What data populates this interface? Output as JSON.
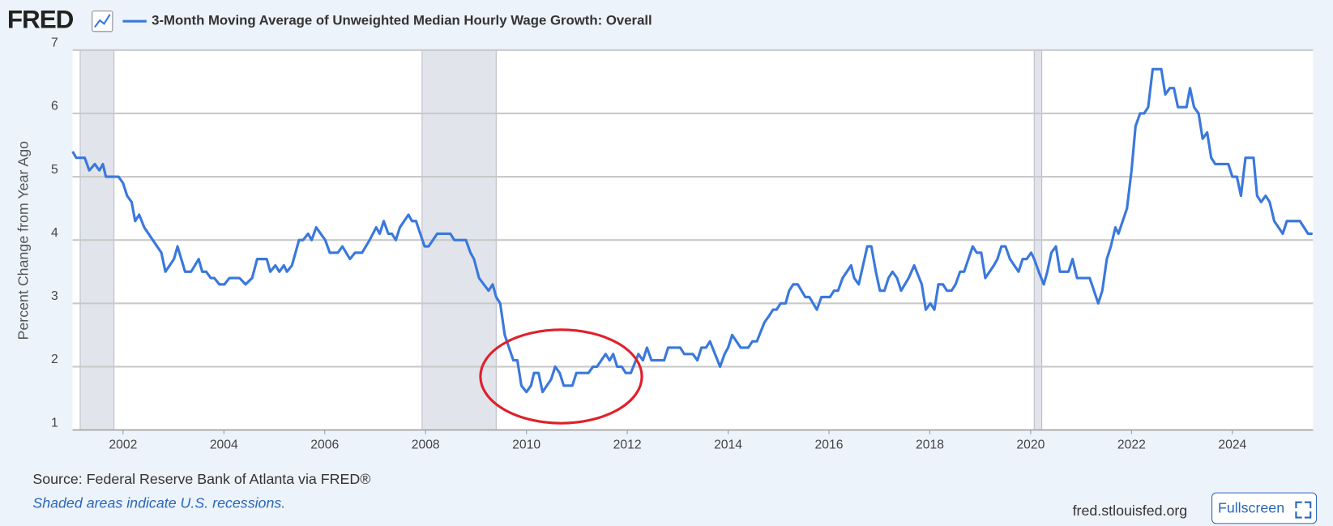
{
  "header": {
    "logo": "FRED"
  },
  "footer": {
    "source": "Source: Federal Reserve Bank of Atlanta via FRED®",
    "note": "Shaded areas indicate U.S. recessions.",
    "site": "fred.stlouisfed.org",
    "button": "Fullscreen"
  },
  "chart_data": {
    "type": "line",
    "ylabel": "Percent Change from Year Ago",
    "xlim": [
      2001.0,
      2025.6
    ],
    "ylim": [
      1,
      7
    ],
    "xticks": [
      2002,
      2004,
      2006,
      2008,
      2010,
      2012,
      2014,
      2016,
      2018,
      2020,
      2022,
      2024
    ],
    "yticks": [
      1,
      2,
      3,
      4,
      5,
      6,
      7
    ],
    "grid": true,
    "recessions": [
      [
        2001.15,
        2001.82
      ],
      [
        2007.93,
        2009.4
      ],
      [
        2020.07,
        2020.22
      ]
    ],
    "x": [
      2001.0,
      2001.07,
      2001.24,
      2001.33,
      2001.44,
      2001.53,
      2001.6,
      2001.66,
      2001.91,
      2002.0,
      2002.08,
      2002.17,
      2002.24,
      2002.32,
      2002.42,
      2002.59,
      2002.76,
      2002.84,
      2003.01,
      2003.08,
      2003.23,
      2003.35,
      2003.5,
      2003.57,
      2003.65,
      2003.74,
      2003.81,
      2003.91,
      2004.01,
      2004.11,
      2004.31,
      2004.43,
      2004.56,
      2004.66,
      2004.85,
      2004.92,
      2005.02,
      2005.1,
      2005.19,
      2005.25,
      2005.35,
      2005.49,
      2005.57,
      2005.67,
      2005.74,
      2005.83,
      2006.01,
      2006.1,
      2006.26,
      2006.35,
      2006.5,
      2006.6,
      2006.74,
      2006.89,
      2007.02,
      2007.09,
      2007.17,
      2007.26,
      2007.33,
      2007.41,
      2007.49,
      2007.66,
      2007.73,
      2007.81,
      2007.98,
      2008.06,
      2008.23,
      2008.49,
      2008.57,
      2008.8,
      2008.89,
      2008.96,
      2009.06,
      2009.25,
      2009.33,
      2009.4,
      2009.48,
      2009.57,
      2009.74,
      2009.82,
      2009.9,
      2010.0,
      2010.09,
      2010.15,
      2010.24,
      2010.32,
      2010.49,
      2010.57,
      2010.66,
      2010.74,
      2010.91,
      2010.99,
      2011.23,
      2011.32,
      2011.4,
      2011.57,
      2011.65,
      2011.72,
      2011.8,
      2011.89,
      2011.97,
      2012.07,
      2012.22,
      2012.31,
      2012.39,
      2012.48,
      2012.73,
      2012.81,
      2013.05,
      2013.13,
      2013.3,
      2013.39,
      2013.47,
      2013.56,
      2013.64,
      2013.84,
      2013.93,
      2014.0,
      2014.08,
      2014.25,
      2014.4,
      2014.48,
      2014.57,
      2014.72,
      2014.81,
      2014.89,
      2014.96,
      2015.04,
      2015.14,
      2015.21,
      2015.29,
      2015.38,
      2015.53,
      2015.61,
      2015.76,
      2015.85,
      2016.02,
      2016.1,
      2016.18,
      2016.27,
      2016.44,
      2016.5,
      2016.59,
      2016.76,
      2016.84,
      2016.93,
      2017.01,
      2017.1,
      2017.18,
      2017.26,
      2017.35,
      2017.43,
      2017.58,
      2017.69,
      2017.84,
      2017.92,
      2018.01,
      2018.09,
      2018.17,
      2018.26,
      2018.34,
      2018.43,
      2018.51,
      2018.6,
      2018.68,
      2018.85,
      2018.93,
      2019.02,
      2019.1,
      2019.27,
      2019.34,
      2019.42,
      2019.5,
      2019.59,
      2019.76,
      2019.84,
      2019.92,
      2020.01,
      2020.07,
      2020.16,
      2020.26,
      2020.33,
      2020.41,
      2020.5,
      2020.58,
      2020.75,
      2020.83,
      2020.92,
      2021.17,
      2021.34,
      2021.42,
      2021.51,
      2021.59,
      2021.68,
      2021.74,
      2021.91,
      2022.0,
      2022.08,
      2022.17,
      2022.25,
      2022.33,
      2022.42,
      2022.59,
      2022.67,
      2022.76,
      2022.84,
      2022.92,
      2023.09,
      2023.16,
      2023.24,
      2023.33,
      2023.41,
      2023.5,
      2023.58,
      2023.66,
      2023.92,
      2024.0,
      2024.09,
      2024.17,
      2024.26,
      2024.42,
      2024.49,
      2024.57,
      2024.66,
      2024.74,
      2024.83,
      2025.0,
      2025.08,
      2025.34,
      2025.5,
      2025.59
    ],
    "series": [
      {
        "name": "3-Month Moving Average of Unweighted Median Hourly Wage Growth: Overall",
        "color": "#3a78dc",
        "values": [
          5.4,
          5.3,
          5.3,
          5.1,
          5.2,
          5.1,
          5.2,
          5.0,
          5.0,
          4.9,
          4.7,
          4.6,
          4.3,
          4.4,
          4.2,
          4.0,
          3.8,
          3.5,
          3.7,
          3.9,
          3.5,
          3.5,
          3.7,
          3.5,
          3.5,
          3.4,
          3.4,
          3.3,
          3.3,
          3.4,
          3.4,
          3.3,
          3.4,
          3.7,
          3.7,
          3.5,
          3.6,
          3.5,
          3.6,
          3.5,
          3.6,
          4.0,
          4.0,
          4.1,
          4.0,
          4.2,
          4.0,
          3.8,
          3.8,
          3.9,
          3.7,
          3.8,
          3.8,
          4.0,
          4.2,
          4.1,
          4.3,
          4.1,
          4.1,
          4.0,
          4.2,
          4.4,
          4.3,
          4.3,
          3.9,
          3.9,
          4.1,
          4.1,
          4.0,
          4.0,
          3.8,
          3.7,
          3.4,
          3.2,
          3.3,
          3.1,
          3.0,
          2.5,
          2.1,
          2.1,
          1.7,
          1.6,
          1.7,
          1.9,
          1.9,
          1.6,
          1.8,
          2.0,
          1.9,
          1.7,
          1.7,
          1.9,
          1.9,
          2.0,
          2.0,
          2.2,
          2.1,
          2.2,
          2.0,
          2.0,
          1.9,
          1.9,
          2.2,
          2.1,
          2.3,
          2.1,
          2.1,
          2.3,
          2.3,
          2.2,
          2.2,
          2.1,
          2.3,
          2.3,
          2.4,
          2.0,
          2.2,
          2.3,
          2.5,
          2.3,
          2.3,
          2.4,
          2.4,
          2.7,
          2.8,
          2.9,
          2.9,
          3.0,
          3.0,
          3.2,
          3.3,
          3.3,
          3.1,
          3.1,
          2.9,
          3.1,
          3.1,
          3.2,
          3.2,
          3.4,
          3.6,
          3.4,
          3.3,
          3.9,
          3.9,
          3.5,
          3.2,
          3.2,
          3.4,
          3.5,
          3.4,
          3.2,
          3.4,
          3.6,
          3.3,
          2.9,
          3.0,
          2.9,
          3.3,
          3.3,
          3.2,
          3.2,
          3.3,
          3.5,
          3.5,
          3.9,
          3.8,
          3.8,
          3.4,
          3.6,
          3.7,
          3.9,
          3.9,
          3.7,
          3.5,
          3.7,
          3.7,
          3.8,
          3.7,
          3.5,
          3.3,
          3.5,
          3.8,
          3.9,
          3.5,
          3.5,
          3.7,
          3.4,
          3.4,
          3.0,
          3.2,
          3.7,
          3.9,
          4.2,
          4.1,
          4.5,
          5.1,
          5.8,
          6.0,
          6.0,
          6.1,
          6.7,
          6.7,
          6.3,
          6.4,
          6.4,
          6.1,
          6.1,
          6.4,
          6.1,
          6.0,
          5.6,
          5.7,
          5.3,
          5.2,
          5.2,
          5.0,
          5.0,
          4.7,
          5.3,
          5.3,
          4.7,
          4.6,
          4.7,
          4.6,
          4.3,
          4.1,
          4.3,
          4.3,
          4.1,
          4.1
        ]
      }
    ]
  }
}
